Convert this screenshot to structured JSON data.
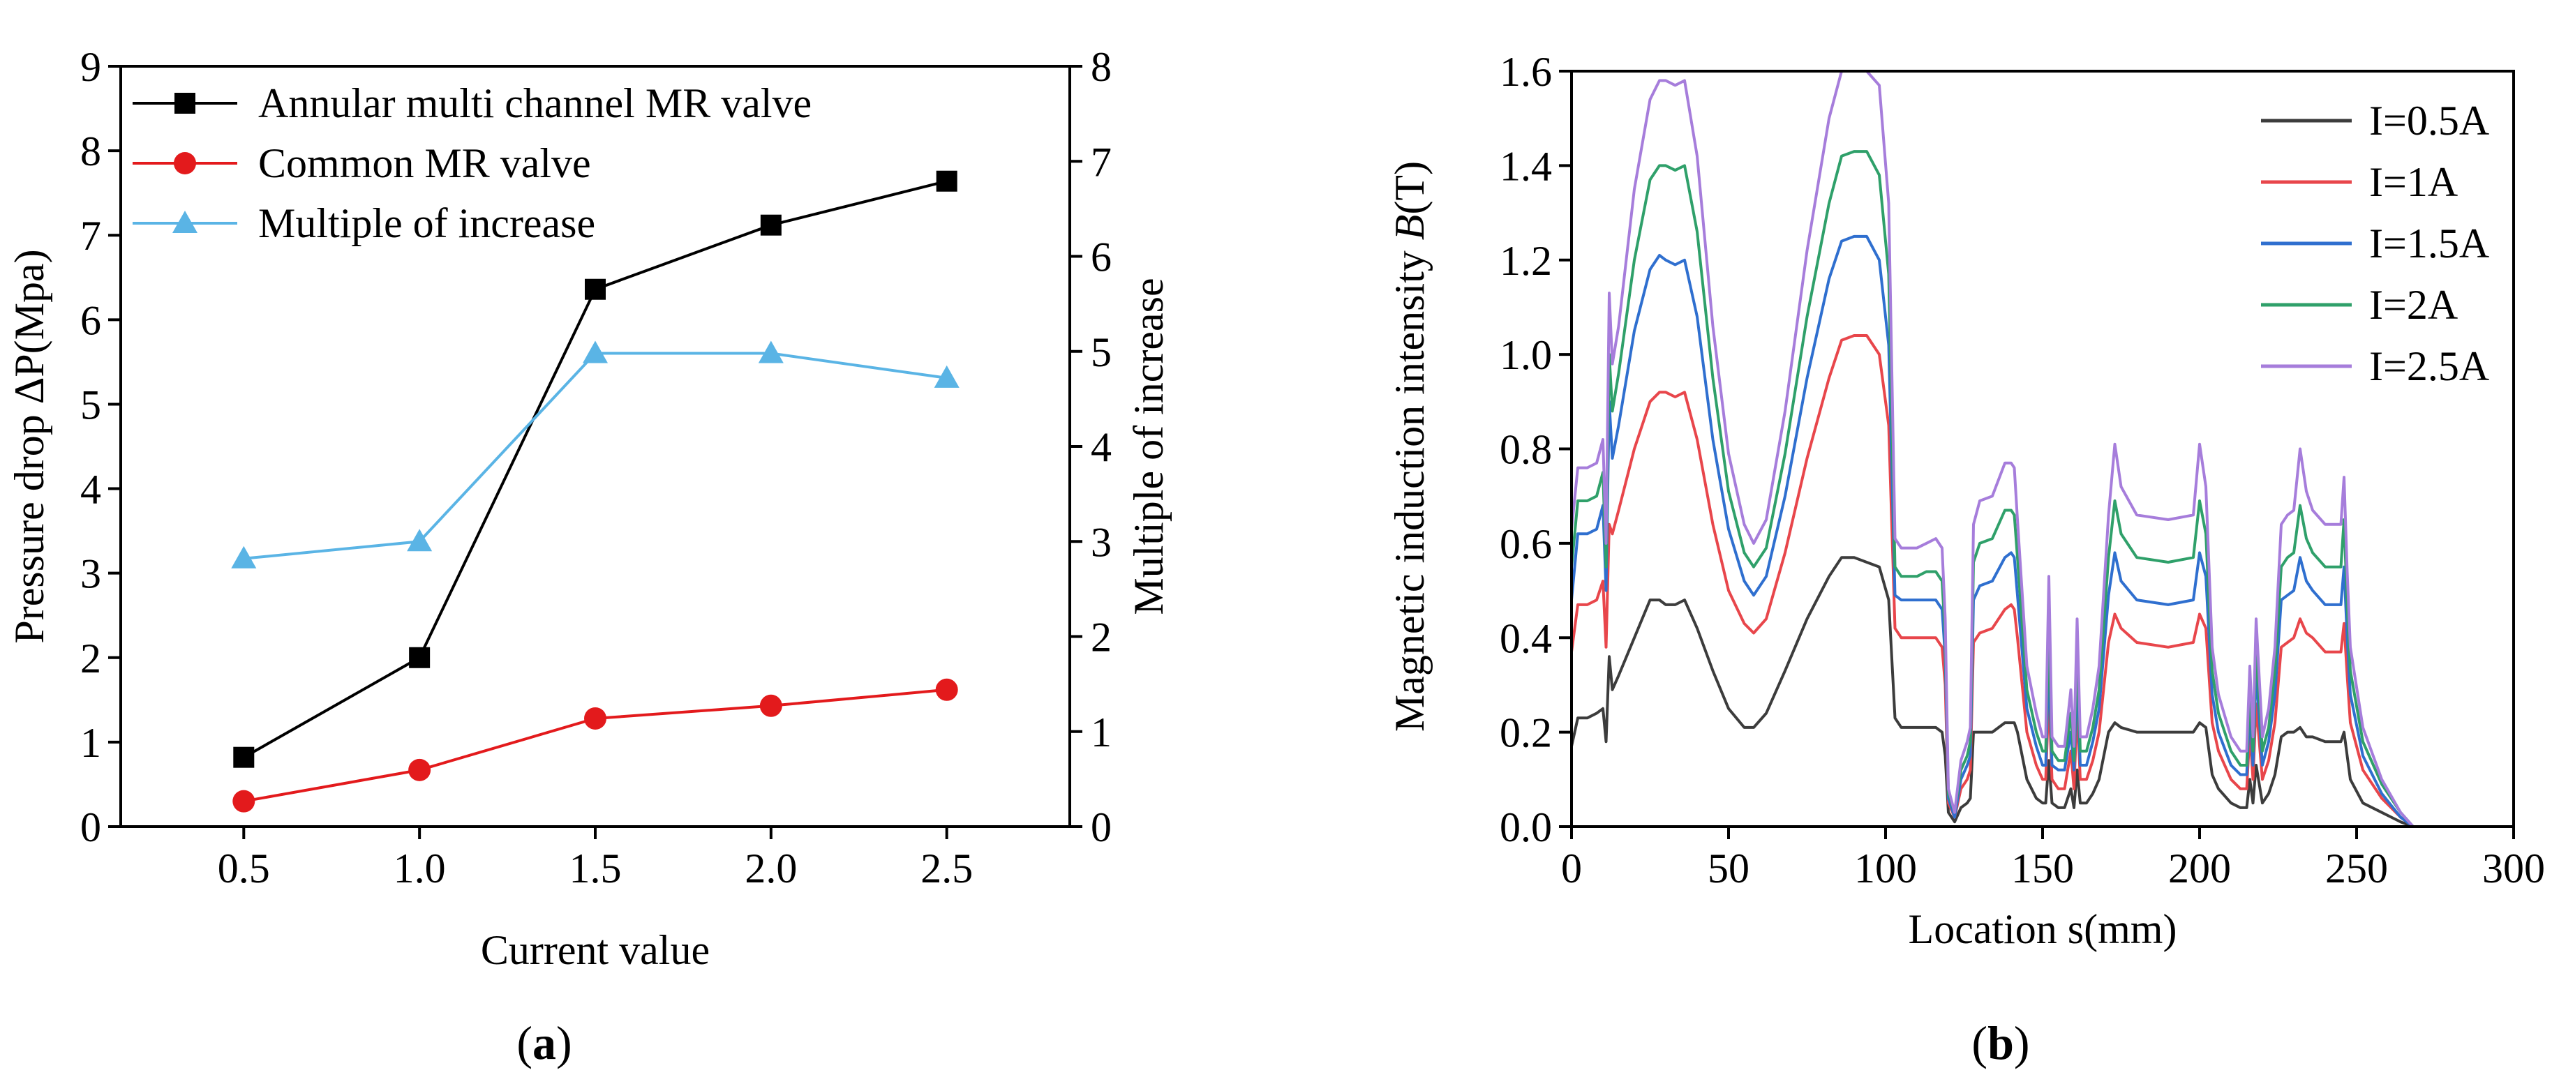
{
  "panels": {
    "a": {
      "label_open": "(",
      "label_letter": "a",
      "label_close": ")"
    },
    "b": {
      "label_open": "(",
      "label_letter": "b",
      "label_close": ")"
    }
  },
  "chart_data": [
    {
      "id": "a",
      "type": "line",
      "title": "",
      "xlabel": "Current value",
      "ylabel": "Pressure drop ΔP(Mpa)",
      "y2label": "Multiple of increase",
      "xlim": [
        0.15,
        2.85
      ],
      "ylim": [
        0,
        9
      ],
      "y2lim": [
        0,
        8
      ],
      "x_ticks": [
        0.5,
        1.0,
        1.5,
        2.0,
        2.5
      ],
      "x_tick_labels": [
        "0.5",
        "1.0",
        "1.5",
        "2.0",
        "2.5"
      ],
      "y_ticks": [
        0,
        1,
        2,
        3,
        4,
        5,
        6,
        7,
        8,
        9
      ],
      "y_tick_labels": [
        "0",
        "1",
        "2",
        "3",
        "4",
        "5",
        "6",
        "7",
        "8",
        "9"
      ],
      "y2_ticks": [
        0,
        1,
        2,
        3,
        4,
        5,
        6,
        7,
        8
      ],
      "y2_tick_labels": [
        "0",
        "1",
        "2",
        "3",
        "4",
        "5",
        "6",
        "7",
        "8"
      ],
      "grid": false,
      "legend_position": "top-left",
      "series": [
        {
          "name": "Annular multi channel MR valve",
          "axis": "left",
          "marker": "square",
          "color": "#000000",
          "x": [
            0.5,
            1.0,
            1.5,
            2.0,
            2.5
          ],
          "values": [
            0.82,
            2.0,
            6.36,
            7.12,
            7.64
          ]
        },
        {
          "name": "Common MR valve",
          "axis": "left",
          "marker": "circle",
          "color": "#e31a1c",
          "x": [
            0.5,
            1.0,
            1.5,
            2.0,
            2.5
          ],
          "values": [
            0.3,
            0.67,
            1.28,
            1.43,
            1.62
          ]
        },
        {
          "name": "Multiple of increase",
          "axis": "right",
          "marker": "triangle",
          "color": "#5ab4e5",
          "x": [
            0.5,
            1.0,
            1.5,
            2.0,
            2.5
          ],
          "values": [
            2.82,
            3.0,
            4.98,
            4.98,
            4.72
          ]
        }
      ]
    },
    {
      "id": "b",
      "type": "line",
      "title": "",
      "xlabel": "Location s(mm)",
      "ylabel_prefix": "Magnetic induction intensity ",
      "ylabel_var": "B",
      "ylabel_suffix": "(T)",
      "xlim": [
        0,
        300
      ],
      "ylim": [
        0,
        1.6
      ],
      "x_ticks": [
        0,
        50,
        100,
        150,
        200,
        250,
        300
      ],
      "x_tick_labels": [
        "0",
        "50",
        "100",
        "150",
        "200",
        "250",
        "300"
      ],
      "y_ticks": [
        0,
        0.2,
        0.4,
        0.6,
        0.8,
        1.0,
        1.2,
        1.4,
        1.6
      ],
      "y_tick_labels": [
        "0.0",
        "0.2",
        "0.4",
        "0.6",
        "0.8",
        "1.0",
        "1.2",
        "1.4",
        "1.6"
      ],
      "grid": false,
      "legend_position": "top-right",
      "x": [
        0,
        2,
        5,
        8,
        10,
        11,
        12,
        13,
        15,
        20,
        25,
        28,
        30,
        33,
        36,
        40,
        45,
        50,
        55,
        58,
        62,
        68,
        75,
        82,
        86,
        90,
        94,
        98,
        101,
        103,
        105,
        110,
        113,
        116,
        118,
        119,
        120,
        122,
        124,
        126,
        127,
        128,
        130,
        134,
        138,
        140,
        141,
        142,
        145,
        148,
        150,
        151,
        152,
        153,
        155,
        157,
        159,
        160,
        161,
        162,
        164,
        166,
        168,
        171,
        173,
        175,
        180,
        190,
        198,
        200,
        202,
        204,
        206,
        210,
        213,
        215,
        216,
        217,
        218,
        220,
        222,
        224,
        226,
        228,
        230,
        232,
        234,
        236,
        240,
        243,
        245,
        246,
        247,
        248,
        252,
        258,
        264,
        268
      ],
      "series": [
        {
          "name": "I=0.5A",
          "color": "#3c3c3c",
          "values": [
            0.17,
            0.23,
            0.23,
            0.24,
            0.25,
            0.18,
            0.36,
            0.29,
            0.32,
            0.4,
            0.48,
            0.48,
            0.47,
            0.47,
            0.48,
            0.42,
            0.33,
            0.25,
            0.21,
            0.21,
            0.24,
            0.33,
            0.44,
            0.53,
            0.57,
            0.57,
            0.56,
            0.55,
            0.48,
            0.23,
            0.21,
            0.21,
            0.21,
            0.21,
            0.2,
            0.15,
            0.03,
            0.01,
            0.04,
            0.05,
            0.06,
            0.2,
            0.2,
            0.2,
            0.22,
            0.22,
            0.22,
            0.2,
            0.1,
            0.06,
            0.05,
            0.05,
            0.14,
            0.05,
            0.04,
            0.04,
            0.08,
            0.04,
            0.12,
            0.05,
            0.05,
            0.07,
            0.1,
            0.2,
            0.22,
            0.21,
            0.2,
            0.2,
            0.2,
            0.22,
            0.21,
            0.11,
            0.08,
            0.05,
            0.04,
            0.04,
            0.1,
            0.05,
            0.13,
            0.05,
            0.07,
            0.11,
            0.19,
            0.2,
            0.2,
            0.21,
            0.19,
            0.19,
            0.18,
            0.18,
            0.18,
            0.2,
            0.15,
            0.1,
            0.05,
            0.03,
            0.01,
            0.0
          ]
        },
        {
          "name": "I=1A",
          "color": "#e8464b",
          "values": [
            0.37,
            0.47,
            0.47,
            0.48,
            0.52,
            0.38,
            0.64,
            0.62,
            0.67,
            0.8,
            0.9,
            0.92,
            0.92,
            0.91,
            0.92,
            0.82,
            0.64,
            0.5,
            0.43,
            0.41,
            0.44,
            0.58,
            0.78,
            0.95,
            1.03,
            1.04,
            1.04,
            1.0,
            0.85,
            0.42,
            0.4,
            0.4,
            0.4,
            0.4,
            0.38,
            0.3,
            0.05,
            0.02,
            0.08,
            0.1,
            0.12,
            0.39,
            0.41,
            0.42,
            0.46,
            0.47,
            0.46,
            0.4,
            0.2,
            0.13,
            0.1,
            0.1,
            0.28,
            0.1,
            0.08,
            0.08,
            0.16,
            0.08,
            0.25,
            0.1,
            0.1,
            0.14,
            0.2,
            0.39,
            0.45,
            0.42,
            0.39,
            0.38,
            0.39,
            0.45,
            0.42,
            0.22,
            0.16,
            0.1,
            0.08,
            0.08,
            0.2,
            0.1,
            0.26,
            0.1,
            0.14,
            0.22,
            0.38,
            0.39,
            0.4,
            0.44,
            0.41,
            0.4,
            0.37,
            0.37,
            0.37,
            0.43,
            0.32,
            0.22,
            0.12,
            0.06,
            0.02,
            0.0
          ]
        },
        {
          "name": "I=1.5A",
          "color": "#2f6fcf",
          "values": [
            0.48,
            0.62,
            0.62,
            0.63,
            0.68,
            0.5,
            0.9,
            0.78,
            0.85,
            1.05,
            1.18,
            1.21,
            1.2,
            1.19,
            1.2,
            1.08,
            0.82,
            0.63,
            0.52,
            0.49,
            0.53,
            0.7,
            0.95,
            1.16,
            1.24,
            1.25,
            1.25,
            1.2,
            1.02,
            0.49,
            0.48,
            0.48,
            0.48,
            0.48,
            0.46,
            0.36,
            0.06,
            0.02,
            0.1,
            0.13,
            0.15,
            0.48,
            0.51,
            0.52,
            0.57,
            0.58,
            0.57,
            0.49,
            0.25,
            0.17,
            0.13,
            0.13,
            0.35,
            0.13,
            0.12,
            0.12,
            0.2,
            0.12,
            0.32,
            0.13,
            0.13,
            0.18,
            0.25,
            0.49,
            0.58,
            0.52,
            0.48,
            0.47,
            0.48,
            0.58,
            0.53,
            0.28,
            0.2,
            0.13,
            0.11,
            0.11,
            0.25,
            0.13,
            0.33,
            0.13,
            0.18,
            0.28,
            0.48,
            0.49,
            0.5,
            0.57,
            0.52,
            0.5,
            0.47,
            0.47,
            0.47,
            0.55,
            0.4,
            0.28,
            0.15,
            0.07,
            0.02,
            0.0
          ]
        },
        {
          "name": "I=2A",
          "color": "#2fa06a",
          "values": [
            0.55,
            0.69,
            0.69,
            0.7,
            0.75,
            0.55,
            1.0,
            0.88,
            0.96,
            1.2,
            1.37,
            1.4,
            1.4,
            1.39,
            1.4,
            1.26,
            0.95,
            0.71,
            0.58,
            0.55,
            0.59,
            0.79,
            1.08,
            1.32,
            1.42,
            1.43,
            1.43,
            1.38,
            1.17,
            0.55,
            0.53,
            0.53,
            0.54,
            0.54,
            0.52,
            0.4,
            0.07,
            0.03,
            0.12,
            0.15,
            0.18,
            0.56,
            0.6,
            0.61,
            0.67,
            0.67,
            0.66,
            0.57,
            0.29,
            0.2,
            0.16,
            0.16,
            0.42,
            0.16,
            0.14,
            0.14,
            0.24,
            0.14,
            0.38,
            0.16,
            0.16,
            0.21,
            0.29,
            0.57,
            0.69,
            0.62,
            0.57,
            0.56,
            0.57,
            0.69,
            0.62,
            0.33,
            0.24,
            0.16,
            0.13,
            0.13,
            0.29,
            0.16,
            0.38,
            0.16,
            0.21,
            0.33,
            0.55,
            0.57,
            0.58,
            0.68,
            0.61,
            0.58,
            0.55,
            0.55,
            0.55,
            0.65,
            0.47,
            0.33,
            0.18,
            0.09,
            0.03,
            0.0
          ]
        },
        {
          "name": "I=2.5A",
          "color": "#a67ddb",
          "values": [
            0.63,
            0.76,
            0.76,
            0.77,
            0.82,
            0.6,
            1.13,
            0.98,
            1.06,
            1.35,
            1.54,
            1.58,
            1.58,
            1.57,
            1.58,
            1.42,
            1.06,
            0.79,
            0.64,
            0.6,
            0.65,
            0.88,
            1.22,
            1.5,
            1.6,
            1.6,
            1.6,
            1.57,
            1.32,
            0.61,
            0.59,
            0.59,
            0.6,
            0.61,
            0.59,
            0.44,
            0.08,
            0.03,
            0.14,
            0.18,
            0.21,
            0.64,
            0.69,
            0.7,
            0.77,
            0.77,
            0.76,
            0.65,
            0.34,
            0.24,
            0.19,
            0.19,
            0.53,
            0.19,
            0.17,
            0.17,
            0.29,
            0.17,
            0.44,
            0.19,
            0.19,
            0.25,
            0.34,
            0.66,
            0.81,
            0.72,
            0.66,
            0.65,
            0.66,
            0.81,
            0.72,
            0.38,
            0.28,
            0.19,
            0.16,
            0.16,
            0.34,
            0.19,
            0.44,
            0.19,
            0.25,
            0.38,
            0.64,
            0.66,
            0.67,
            0.8,
            0.71,
            0.67,
            0.64,
            0.64,
            0.64,
            0.74,
            0.54,
            0.38,
            0.21,
            0.1,
            0.03,
            0.0
          ]
        }
      ]
    }
  ]
}
